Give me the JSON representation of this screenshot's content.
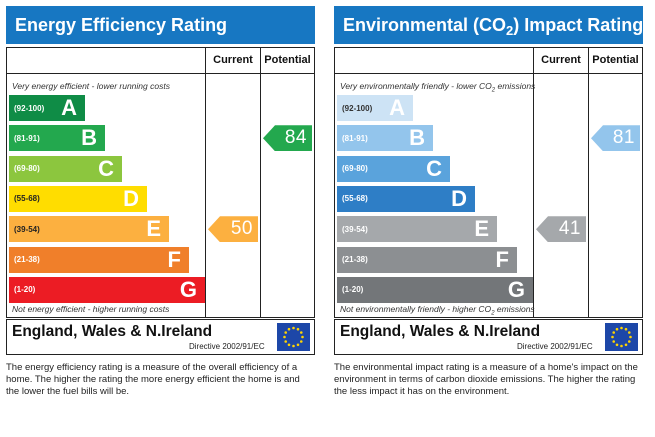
{
  "panels": [
    {
      "id": "energy",
      "title": "Energy Efficiency Rating",
      "title_color": "#1777c2",
      "col_current": "Current",
      "col_potential": "Potential",
      "top_note": "Very energy efficient - lower running costs",
      "bottom_note": "Not energy efficient - higher running costs",
      "bands": [
        {
          "range": "(92-100)",
          "letter": "A",
          "color": "#0f8c46",
          "range_color": "#ffffff"
        },
        {
          "range": "(81-91)",
          "letter": "B",
          "color": "#23a84e",
          "range_color": "#ffffff"
        },
        {
          "range": "(69-80)",
          "letter": "C",
          "color": "#8cc63e",
          "range_color": "#ffffff"
        },
        {
          "range": "(55-68)",
          "letter": "D",
          "color": "#ffdd00",
          "range_color": "#222222"
        },
        {
          "range": "(39-54)",
          "letter": "E",
          "color": "#fcb040",
          "range_color": "#222222"
        },
        {
          "range": "(21-38)",
          "letter": "F",
          "color": "#f07f2a",
          "range_color": "#ffffff"
        },
        {
          "range": "(1-20)",
          "letter": "G",
          "color": "#ec1c24",
          "range_color": "#ffffff"
        }
      ],
      "current": {
        "value": "50",
        "band_index": 4,
        "color": "#fcb040"
      },
      "potential": {
        "value": "84",
        "band_index": 1,
        "color": "#23a84e"
      },
      "region": "England, Wales & N.Ireland",
      "directive": "Directive 2002/91/EC",
      "description": "The energy efficiency rating is a measure of the overall efficiency of a home. The higher the rating the more energy efficient the home is and the lower the fuel bills will be."
    },
    {
      "id": "env",
      "title": "Environmental (CO2) Impact Rating",
      "title_color": "#1777c2",
      "col_current": "Current",
      "col_potential": "Potential",
      "top_note": "Very environmentally friendly - lower CO2 emissions",
      "bottom_note": "Not environmentally friendly - higher CO2 emissions",
      "bands": [
        {
          "range": "(92-100)",
          "letter": "A",
          "color": "#cde3f5",
          "range_color": "#333333"
        },
        {
          "range": "(81-91)",
          "letter": "B",
          "color": "#93c5ec",
          "range_color": "#ffffff"
        },
        {
          "range": "(69-80)",
          "letter": "C",
          "color": "#5aa3dc",
          "range_color": "#ffffff"
        },
        {
          "range": "(55-68)",
          "letter": "D",
          "color": "#2e7ec6",
          "range_color": "#ffffff"
        },
        {
          "range": "(39-54)",
          "letter": "E",
          "color": "#a5a8ab",
          "range_color": "#ffffff"
        },
        {
          "range": "(21-38)",
          "letter": "F",
          "color": "#8c8f92",
          "range_color": "#ffffff"
        },
        {
          "range": "(1-20)",
          "letter": "G",
          "color": "#737679",
          "range_color": "#ffffff"
        }
      ],
      "current": {
        "value": "41",
        "band_index": 4,
        "color": "#a5a8ab"
      },
      "potential": {
        "value": "81",
        "band_index": 1,
        "color": "#93c5ec"
      },
      "region": "England, Wales & N.Ireland",
      "directive": "Directive 2002/91/EC",
      "description": "The environmental impact rating is a measure of a home's impact on the environment in terms of carbon dioxide emissions. The higher the rating the less impact it has on the environment."
    }
  ],
  "icons": {
    "eu_flag": "eu-flag-icon"
  }
}
